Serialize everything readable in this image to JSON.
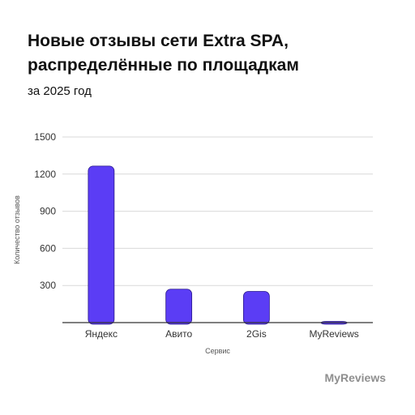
{
  "title_line1": "Новые отзывы сети Extra SPA,",
  "title_line2": "распределённые по площадкам",
  "subtitle": "за 2025 год",
  "brand": "MyReviews",
  "colors": {
    "bar": "#5B3DF5",
    "grid": "#d9d9d9",
    "axis": "#333333"
  },
  "chart_data": {
    "type": "bar",
    "title": "Новые отзывы сети Extra SPA, распределённые по площадкам",
    "subtitle": "за 2025 год",
    "xlabel": "Сервис",
    "ylabel": "Количество отзывов",
    "categories": [
      "Яндекс",
      "Авито",
      "2Gis",
      "MyReviews"
    ],
    "values": [
      1265,
      270,
      252,
      10
    ],
    "ylim": [
      0,
      1500
    ],
    "yticks": [
      300,
      600,
      900,
      1200,
      1500
    ],
    "grid": true
  }
}
